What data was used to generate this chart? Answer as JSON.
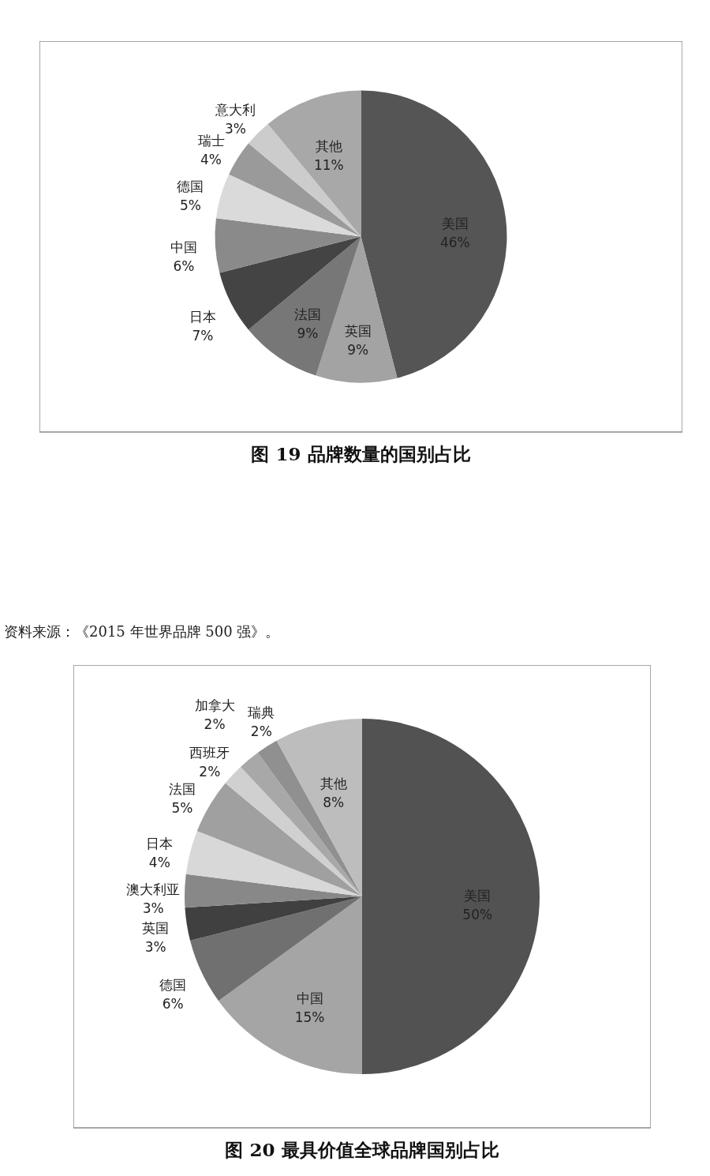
{
  "chart_data": [
    {
      "type": "pie",
      "title": "图 19 品牌数量的国别占比",
      "categories": [
        "美国",
        "英国",
        "法国",
        "日本",
        "中国",
        "德国",
        "瑞士",
        "意大利",
        "其他"
      ],
      "values": [
        46,
        9,
        9,
        7,
        6,
        5,
        4,
        3,
        11
      ],
      "value_labels": [
        "46%",
        "9%",
        "9%",
        "7%",
        "6%",
        "5%",
        "4%",
        "3%",
        "11%"
      ],
      "colors": [
        "#555555",
        "#a3a3a3",
        "#777777",
        "#444444",
        "#8a8a8a",
        "#dadada",
        "#9a9a9a",
        "#cccccc",
        "#a8a8a8"
      ]
    },
    {
      "type": "pie",
      "title": "图 20 最具价值全球品牌国别占比",
      "annotations": [
        "资料来源：《2015 年世界品牌 500 强》。"
      ],
      "categories": [
        "美国",
        "中国",
        "德国",
        "英国",
        "澳大利亚",
        "日本",
        "法国",
        "西班牙",
        "加拿大",
        "瑞典",
        "其他"
      ],
      "values": [
        50,
        15,
        6,
        3,
        3,
        4,
        5,
        2,
        2,
        2,
        8
      ],
      "value_labels": [
        "50%",
        "15%",
        "6%",
        "3%",
        "3%",
        "4%",
        "5%",
        "2%",
        "2%",
        "2%",
        "8%"
      ],
      "colors": [
        "#525252",
        "#a5a5a5",
        "#707070",
        "#404040",
        "#888888",
        "#d8d8d8",
        "#a0a0a0",
        "#d0d0d0",
        "#a8a8a8",
        "#909090",
        "#bdbdbd"
      ]
    }
  ]
}
